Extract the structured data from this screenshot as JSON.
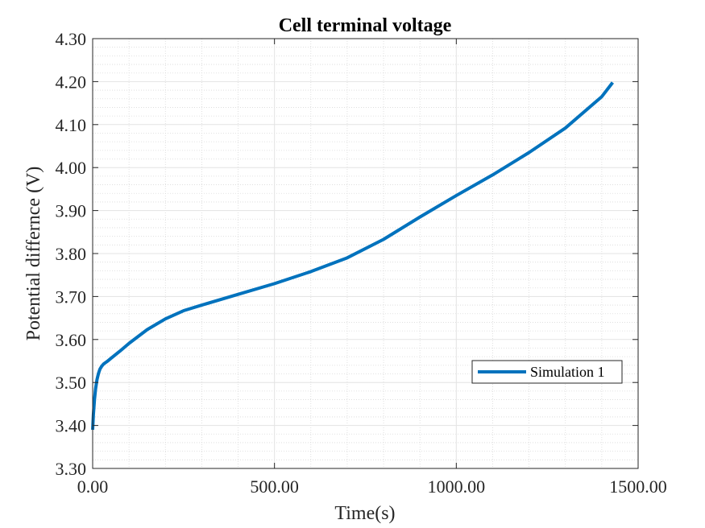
{
  "chart_data": {
    "type": "line",
    "title": "Cell terminal voltage",
    "xlabel": "Time(s)",
    "ylabel": "Potential differnce (V)",
    "xlim": [
      0,
      1500
    ],
    "ylim": [
      3.3,
      4.3
    ],
    "x_ticks": [
      "0.00",
      "500.00",
      "1000.00",
      "1500.00"
    ],
    "y_ticks": [
      "3.30",
      "3.40",
      "3.50",
      "3.60",
      "3.70",
      "3.80",
      "3.90",
      "4.00",
      "4.10",
      "4.20",
      "4.30"
    ],
    "grid": "major and minor",
    "legend_position": "lower-right",
    "series": [
      {
        "name": "Simulation 1",
        "color": "#0072BD",
        "x": [
          0,
          2,
          5,
          8,
          12,
          16,
          20,
          25,
          30,
          40,
          50,
          75,
          100,
          150,
          200,
          250,
          300,
          400,
          500,
          600,
          700,
          800,
          900,
          1000,
          1100,
          1200,
          1300,
          1400,
          1430
        ],
        "y": [
          3.39,
          3.425,
          3.46,
          3.485,
          3.507,
          3.521,
          3.531,
          3.538,
          3.543,
          3.549,
          3.556,
          3.573,
          3.591,
          3.623,
          3.648,
          3.667,
          3.68,
          3.705,
          3.73,
          3.758,
          3.79,
          3.833,
          3.885,
          3.935,
          3.983,
          4.035,
          4.092,
          4.165,
          4.198
        ]
      }
    ]
  }
}
